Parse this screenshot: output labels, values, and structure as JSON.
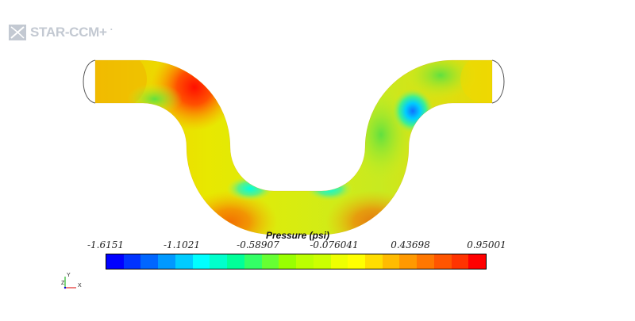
{
  "app": {
    "logo_text": "STAR-CCM+",
    "logo_symbol": "·"
  },
  "legend": {
    "title": "Pressure (psi)",
    "ticks": [
      "-1.6151",
      "-1.1021",
      "-0.58907",
      "-0.076041",
      "0.43698",
      "0.95001"
    ],
    "colors": [
      "#0000ff",
      "#0033ff",
      "#0066ff",
      "#0099ff",
      "#00ccff",
      "#00ffff",
      "#00ffcc",
      "#00ff99",
      "#33ff66",
      "#66ff33",
      "#99ff00",
      "#bbff00",
      "#ccff00",
      "#eeff00",
      "#ffff00",
      "#ffdd00",
      "#ffbb00",
      "#ff9900",
      "#ff7700",
      "#ff5500",
      "#ff3300",
      "#ff0000"
    ]
  },
  "triad": {
    "y_label": "Y",
    "z_label": "Z",
    "x_label": "X"
  }
}
